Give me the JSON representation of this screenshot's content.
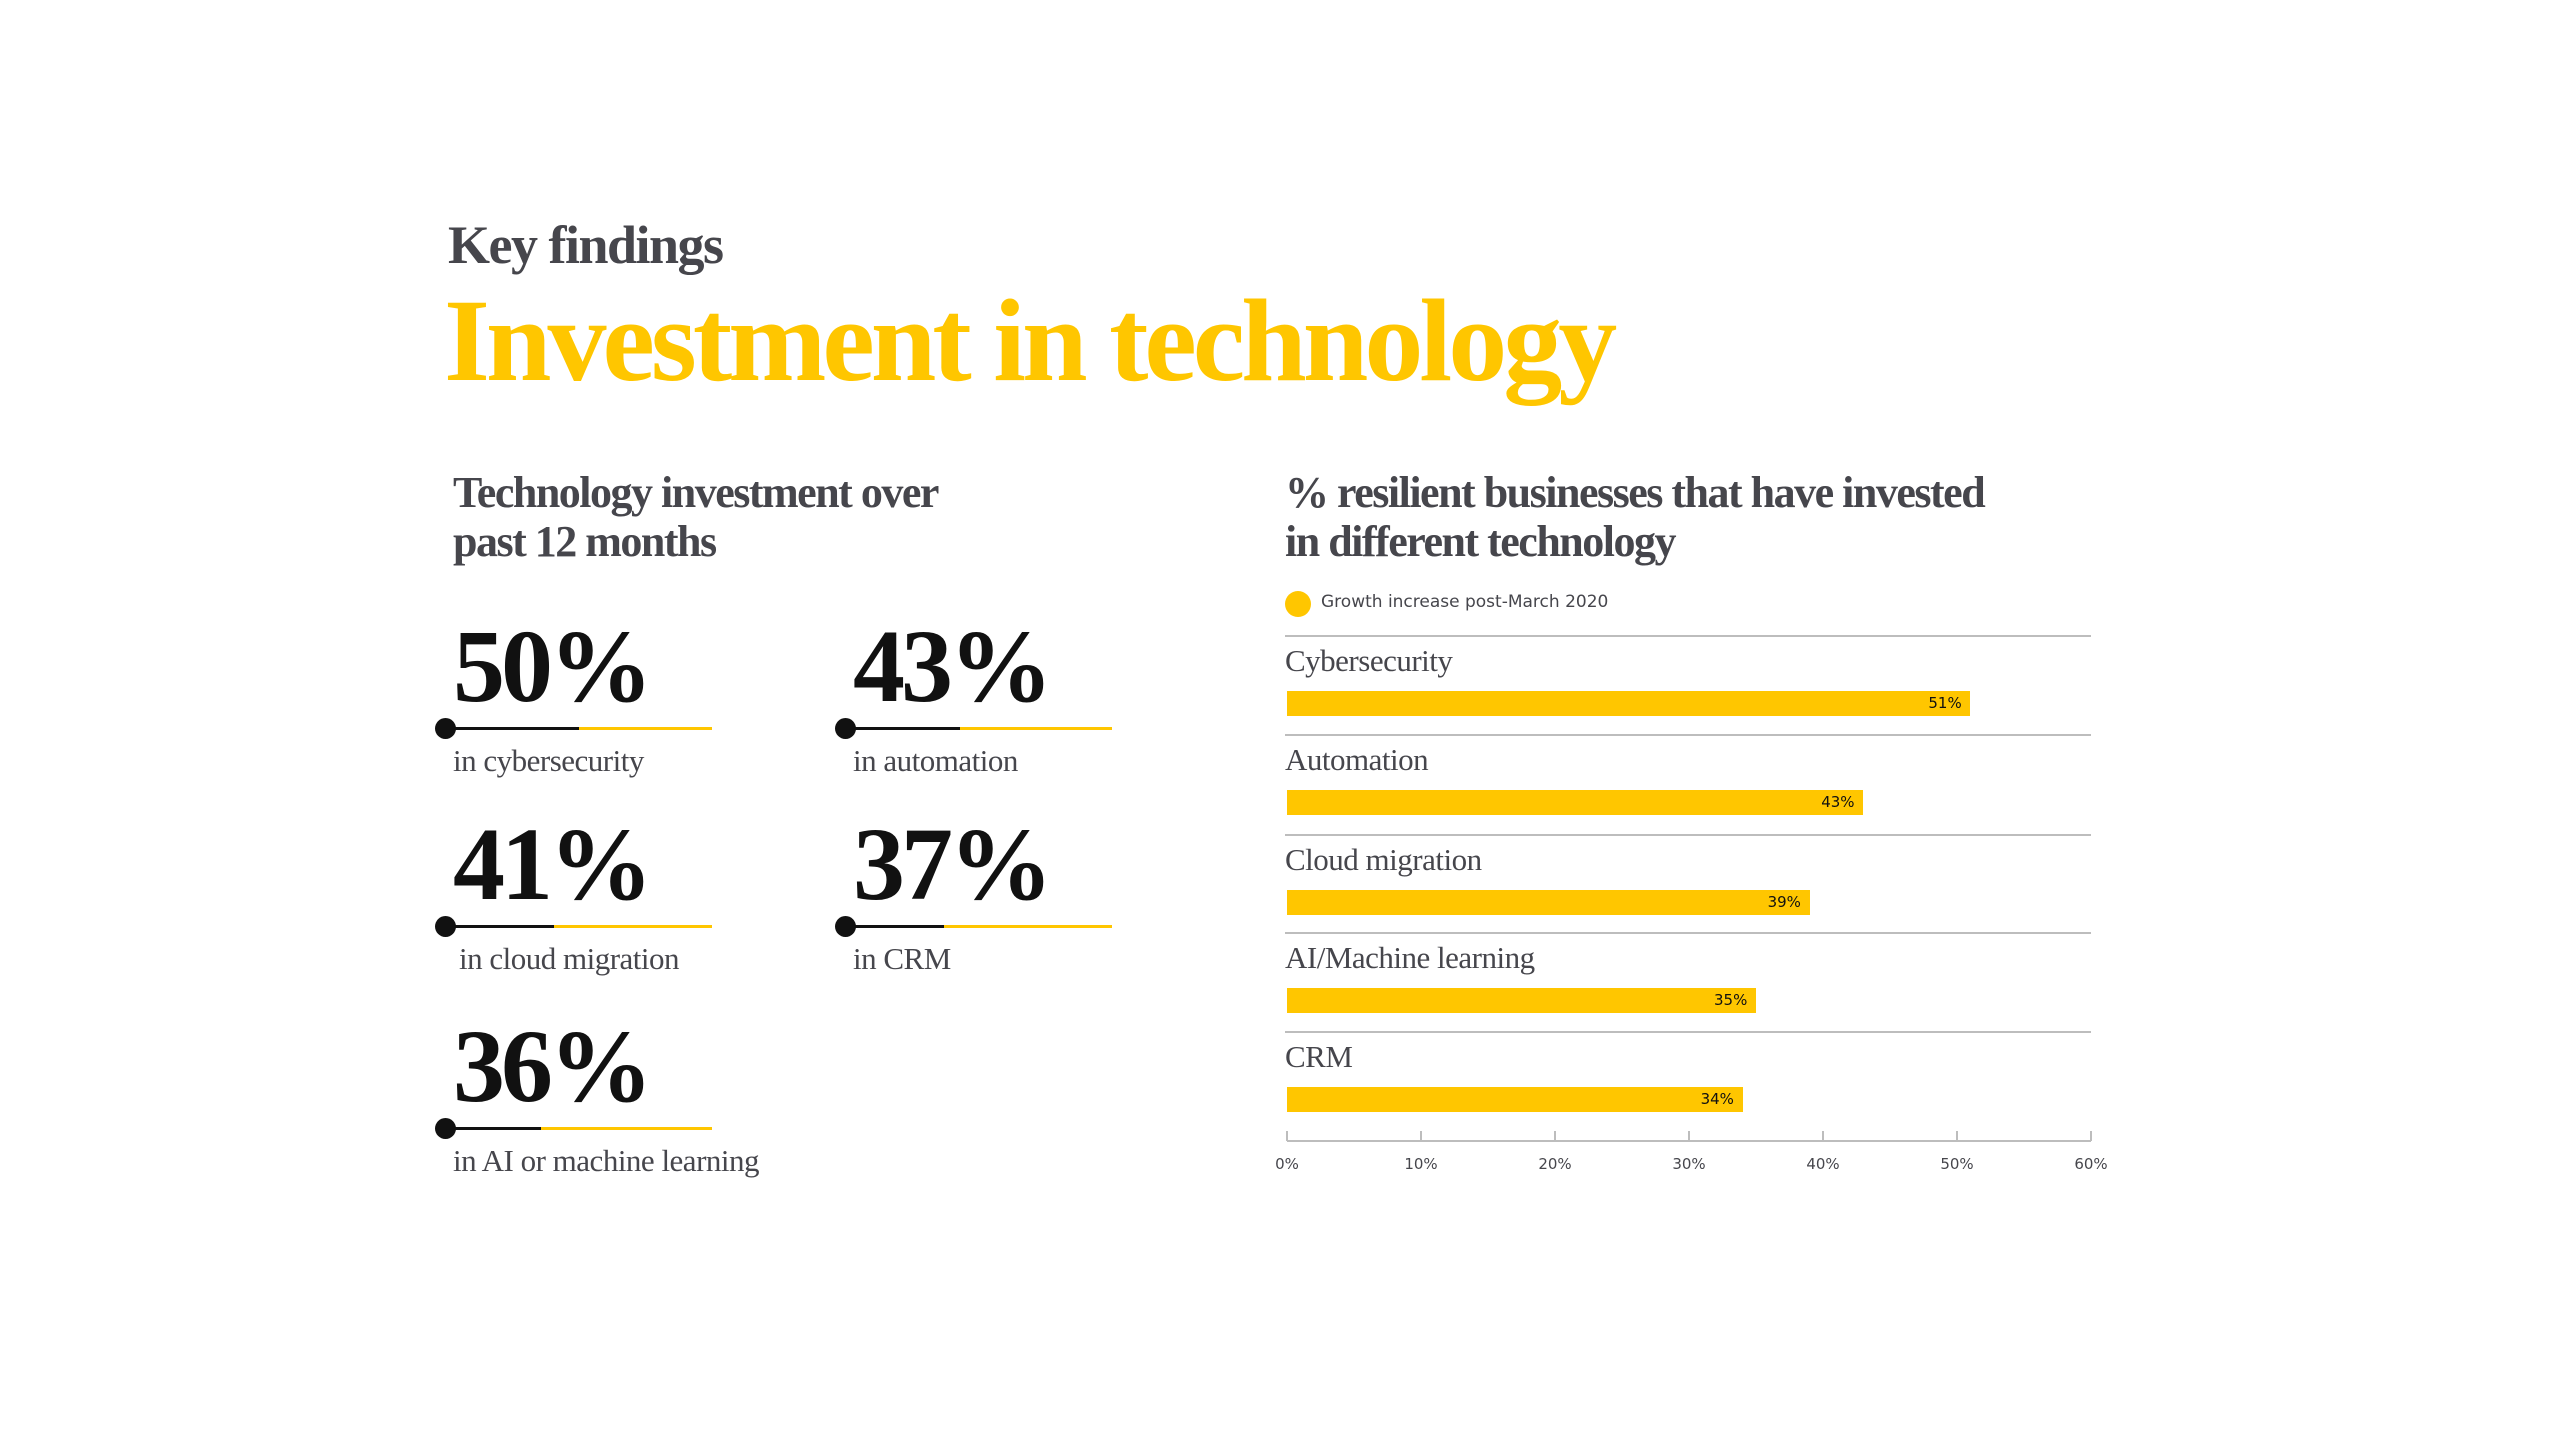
{
  "header": {
    "kicker": "Key findings",
    "title": "Investment in technology"
  },
  "left_panel": {
    "heading_line1": "Technology investment over",
    "heading_line2": "past 12 months",
    "stats": [
      {
        "value": "50%",
        "fraction": 0.5,
        "label": "in cybersecurity"
      },
      {
        "value": "43%",
        "fraction": 0.43,
        "label": "in automation"
      },
      {
        "value": "41%",
        "fraction": 0.41,
        "label": "in cloud migration"
      },
      {
        "value": "37%",
        "fraction": 0.37,
        "label": "in CRM"
      },
      {
        "value": "36%",
        "fraction": 0.36,
        "label": "in AI or machine learning"
      }
    ]
  },
  "colors": {
    "accent": "#FFC600",
    "text": "#46464c",
    "ink": "#111111"
  },
  "chart_data": {
    "type": "bar",
    "orientation": "horizontal",
    "title": "% resilient businesses that have invested in different technology",
    "title_line1": "% resilient businesses that have invested",
    "title_line2": "in different technology",
    "legend": {
      "position": "top-left",
      "entries": [
        "Growth increase post-March 2020"
      ]
    },
    "categories": [
      "Cybersecurity",
      "Automation",
      "Cloud migration",
      "AI/Machine learning",
      "CRM"
    ],
    "series": [
      {
        "name": "Growth increase post-March 2020",
        "values": [
          51,
          43,
          39,
          35,
          34
        ],
        "color": "#FFC600"
      }
    ],
    "data_labels": [
      "51%",
      "43%",
      "39%",
      "35%",
      "34%"
    ],
    "xlim": [
      0,
      60
    ],
    "xticks": [
      "0%",
      "10%",
      "20%",
      "30%",
      "40%",
      "50%",
      "60%"
    ],
    "grid": false
  }
}
